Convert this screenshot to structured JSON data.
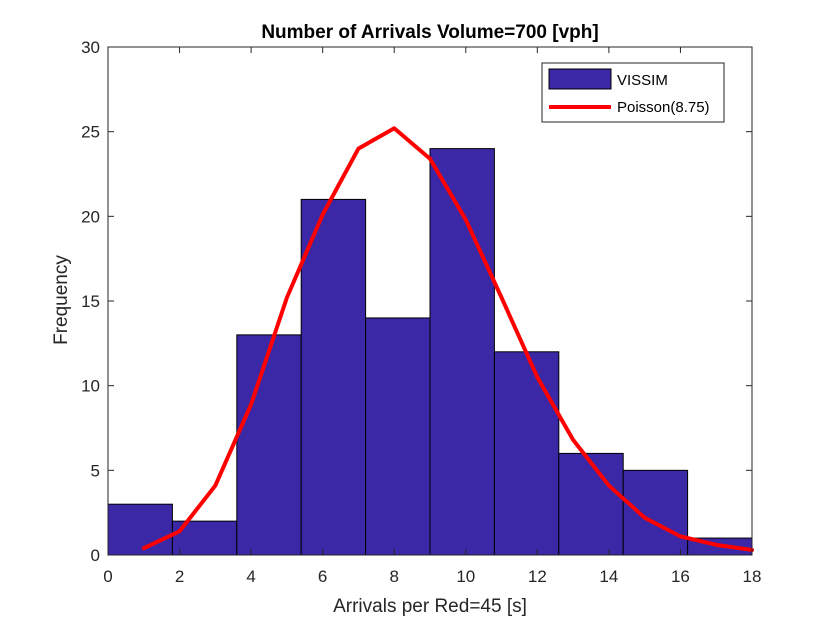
{
  "chart_data": {
    "type": "bar",
    "title": "Number of Arrivals Volume=700 [vph]",
    "xlabel": "Arrivals per Red=45 [s]",
    "ylabel": "Frequency",
    "xlim": [
      0,
      18
    ],
    "ylim": [
      0,
      30
    ],
    "xticks": [
      0,
      2,
      4,
      6,
      8,
      10,
      12,
      14,
      16,
      18
    ],
    "yticks": [
      0,
      5,
      10,
      15,
      20,
      25,
      30
    ],
    "grid": false,
    "legend_position": "top-right",
    "bar_color": "#3a28a6",
    "line_color": "#ff0000",
    "histogram": {
      "name": "VISSIM",
      "bin_edges": [
        0,
        1.8,
        3.6,
        5.4,
        7.2,
        9.0,
        10.8,
        12.6,
        14.4,
        16.2,
        18.0
      ],
      "counts": [
        3,
        2,
        13,
        21,
        14,
        24,
        12,
        6,
        5,
        1
      ]
    },
    "line": {
      "name": "Poisson(8.75)",
      "x": [
        1,
        2,
        3,
        4,
        5,
        6,
        7,
        8,
        9,
        10,
        11,
        12,
        13,
        14,
        15,
        16,
        17,
        18
      ],
      "y": [
        0.4,
        1.4,
        4.1,
        8.9,
        15.2,
        20.1,
        24.0,
        25.2,
        23.4,
        19.8,
        15.2,
        10.5,
        6.8,
        4.1,
        2.2,
        1.1,
        0.6,
        0.3
      ]
    }
  }
}
